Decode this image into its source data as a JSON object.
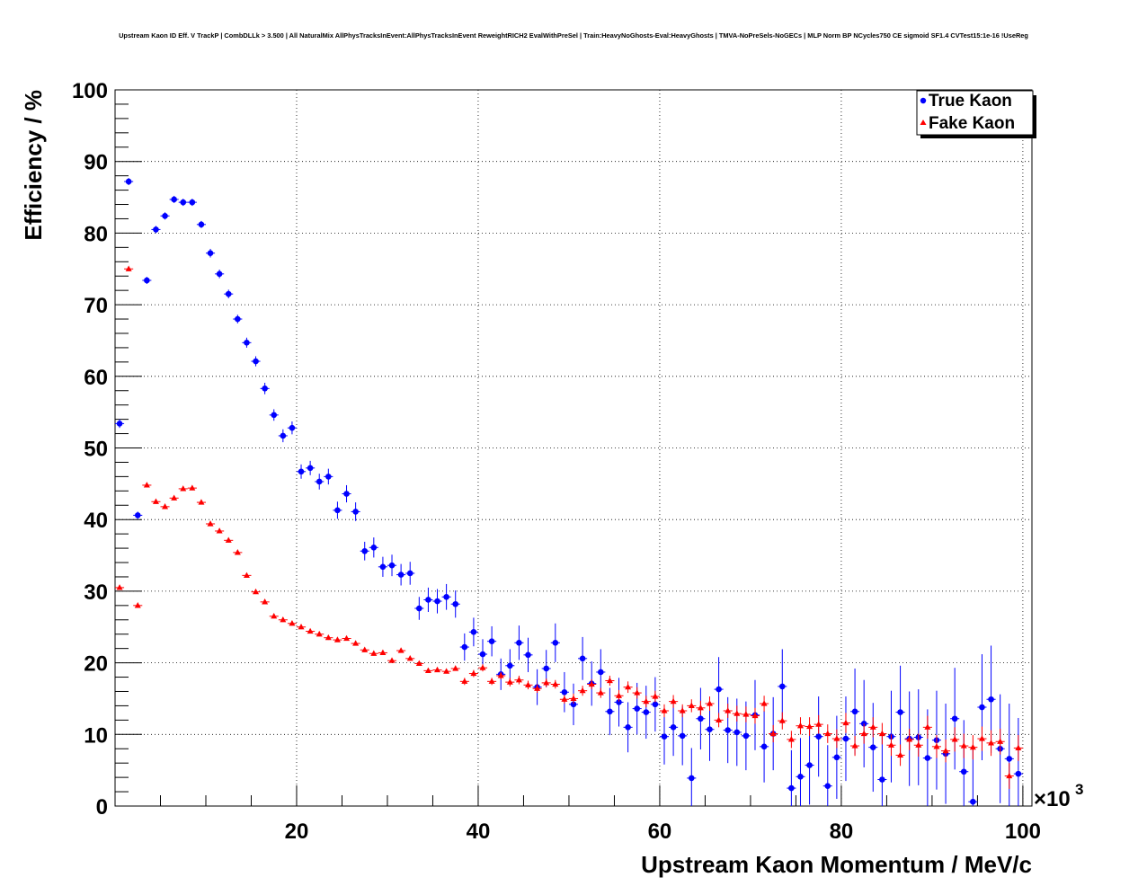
{
  "chart_data": {
    "type": "scatter",
    "title": "Upstream Kaon ID Eff. V TrackP | CombDLLk > 3.500 | All NaturalMix AllPhysTracksInEvent:AllPhysTracksInEvent ReweightRICH2 EvalWithPreSel | Train:HeavyNoGhosts-Eval:HeavyGhosts | TMVA-NoPreSels-NoGECs | MLP Norm BP NCycles750 CE sigmoid SF1.4 CVTest15:1e-16 !UseReg",
    "xlabel": "Upstream Kaon Momentum / MeV/c",
    "ylabel": "Efficiency / %",
    "x_exponent_label": "×10",
    "x_exponent_power": "3",
    "xlim": [
      0,
      101
    ],
    "ylim": [
      0,
      100
    ],
    "x_ticks": [
      "20",
      "40",
      "60",
      "80",
      "100"
    ],
    "y_ticks": [
      "0",
      "10",
      "20",
      "30",
      "40",
      "50",
      "60",
      "70",
      "80",
      "90",
      "100"
    ],
    "grid": true,
    "legend_position": "top-right",
    "series": [
      {
        "name": "True Kaon",
        "color": "#0000ff",
        "marker": "circle",
        "points": [
          [
            0.5,
            53.4,
            0.6
          ],
          [
            1.5,
            87.2,
            0.5
          ],
          [
            2.5,
            40.6,
            0.5
          ],
          [
            3.5,
            73.4,
            0.5
          ],
          [
            4.5,
            80.5,
            0.5
          ],
          [
            5.5,
            82.4,
            0.5
          ],
          [
            6.5,
            84.7,
            0.5
          ],
          [
            7.5,
            84.3,
            0.5
          ],
          [
            8.5,
            84.3,
            0.5
          ],
          [
            9.5,
            81.2,
            0.5
          ],
          [
            10.5,
            77.2,
            0.6
          ],
          [
            11.5,
            74.3,
            0.6
          ],
          [
            12.5,
            71.5,
            0.6
          ],
          [
            13.5,
            68.0,
            0.6
          ],
          [
            14.5,
            64.7,
            0.7
          ],
          [
            15.5,
            62.1,
            0.7
          ],
          [
            16.5,
            58.3,
            0.8
          ],
          [
            17.5,
            54.6,
            0.8
          ],
          [
            18.5,
            51.7,
            0.9
          ],
          [
            19.5,
            52.8,
            0.9
          ],
          [
            20.5,
            46.7,
            1.0
          ],
          [
            21.5,
            47.2,
            1.0
          ],
          [
            22.5,
            45.3,
            1.1
          ],
          [
            23.5,
            46.0,
            1.1
          ],
          [
            24.5,
            41.3,
            1.2
          ],
          [
            25.5,
            43.6,
            1.2
          ],
          [
            26.5,
            41.1,
            1.3
          ],
          [
            27.5,
            35.6,
            1.3
          ],
          [
            28.5,
            36.1,
            1.4
          ],
          [
            29.5,
            33.4,
            1.4
          ],
          [
            30.5,
            33.6,
            1.5
          ],
          [
            31.5,
            32.3,
            1.5
          ],
          [
            32.5,
            32.5,
            1.6
          ],
          [
            33.5,
            27.6,
            1.6
          ],
          [
            34.5,
            28.8,
            1.7
          ],
          [
            35.5,
            28.6,
            1.7
          ],
          [
            36.5,
            29.2,
            1.8
          ],
          [
            37.5,
            28.2,
            1.9
          ],
          [
            38.5,
            22.2,
            1.9
          ],
          [
            39.5,
            24.3,
            2.0
          ],
          [
            40.5,
            21.2,
            2.1
          ],
          [
            41.5,
            23.0,
            2.1
          ],
          [
            42.5,
            18.4,
            2.2
          ],
          [
            43.5,
            19.6,
            2.3
          ],
          [
            44.5,
            22.8,
            2.4
          ],
          [
            45.5,
            21.1,
            2.4
          ],
          [
            46.5,
            16.6,
            2.5
          ],
          [
            47.5,
            19.2,
            2.6
          ],
          [
            48.5,
            22.8,
            2.7
          ],
          [
            49.5,
            15.9,
            2.8
          ],
          [
            50.5,
            14.2,
            2.9
          ],
          [
            51.5,
            20.6,
            3.0
          ],
          [
            52.5,
            17.1,
            3.1
          ],
          [
            53.5,
            18.7,
            3.2
          ],
          [
            54.5,
            13.2,
            3.3
          ],
          [
            55.5,
            14.5,
            3.4
          ],
          [
            56.5,
            11.0,
            3.5
          ],
          [
            57.5,
            13.6,
            3.6
          ],
          [
            58.5,
            13.1,
            3.7
          ],
          [
            59.5,
            14.2,
            3.8
          ],
          [
            60.5,
            9.7,
            3.9
          ],
          [
            61.5,
            11.0,
            4.0
          ],
          [
            62.5,
            9.8,
            4.1
          ],
          [
            63.5,
            3.9,
            4.2
          ],
          [
            64.5,
            12.2,
            4.3
          ],
          [
            65.5,
            10.7,
            4.4
          ],
          [
            66.5,
            16.3,
            4.5
          ],
          [
            67.5,
            10.6,
            4.6
          ],
          [
            68.5,
            10.3,
            4.7
          ],
          [
            69.5,
            9.8,
            4.8
          ],
          [
            70.5,
            12.7,
            4.9
          ],
          [
            71.5,
            8.3,
            5.0
          ],
          [
            72.5,
            10.1,
            5.1
          ],
          [
            73.5,
            16.7,
            5.2
          ],
          [
            74.5,
            2.5,
            5.3
          ],
          [
            75.5,
            4.1,
            5.4
          ],
          [
            76.5,
            5.7,
            5.5
          ],
          [
            77.5,
            9.7,
            5.6
          ],
          [
            78.5,
            2.8,
            5.7
          ],
          [
            79.5,
            6.8,
            5.8
          ],
          [
            80.5,
            9.4,
            5.9
          ],
          [
            81.5,
            13.2,
            6.0
          ],
          [
            82.5,
            11.5,
            6.1
          ],
          [
            83.5,
            8.2,
            6.2
          ],
          [
            84.5,
            3.7,
            6.3
          ],
          [
            85.5,
            9.7,
            6.4
          ],
          [
            86.5,
            13.1,
            6.5
          ],
          [
            87.5,
            9.4,
            6.6
          ],
          [
            88.5,
            9.6,
            6.7
          ],
          [
            89.5,
            6.7,
            6.8
          ],
          [
            90.5,
            9.2,
            6.9
          ],
          [
            91.5,
            7.3,
            7.0
          ],
          [
            92.5,
            12.2,
            7.1
          ],
          [
            93.5,
            4.8,
            7.2
          ],
          [
            94.5,
            0.6,
            7.3
          ],
          [
            95.5,
            13.8,
            7.4
          ],
          [
            96.5,
            14.9,
            7.5
          ],
          [
            97.5,
            8.0,
            7.6
          ],
          [
            98.5,
            6.6,
            7.7
          ],
          [
            99.5,
            4.5,
            7.8
          ]
        ]
      },
      {
        "name": "Fake Kaon",
        "color": "#ff0000",
        "marker": "triangle",
        "points": [
          [
            0.5,
            30.5,
            0.3
          ],
          [
            1.5,
            75.0,
            0.3
          ],
          [
            2.5,
            28.0,
            0.3
          ],
          [
            3.5,
            44.8,
            0.3
          ],
          [
            4.5,
            42.5,
            0.3
          ],
          [
            5.5,
            41.8,
            0.3
          ],
          [
            6.5,
            43.0,
            0.3
          ],
          [
            7.5,
            44.3,
            0.3
          ],
          [
            8.5,
            44.4,
            0.3
          ],
          [
            9.5,
            42.4,
            0.3
          ],
          [
            10.5,
            39.4,
            0.3
          ],
          [
            11.5,
            38.4,
            0.3
          ],
          [
            12.5,
            37.1,
            0.3
          ],
          [
            13.5,
            35.4,
            0.3
          ],
          [
            14.5,
            32.2,
            0.3
          ],
          [
            15.5,
            29.9,
            0.3
          ],
          [
            16.5,
            28.5,
            0.3
          ],
          [
            17.5,
            26.5,
            0.3
          ],
          [
            18.5,
            26.0,
            0.3
          ],
          [
            19.5,
            25.5,
            0.3
          ],
          [
            20.5,
            25.0,
            0.3
          ],
          [
            21.5,
            24.4,
            0.3
          ],
          [
            22.5,
            24.0,
            0.3
          ],
          [
            23.5,
            23.5,
            0.3
          ],
          [
            24.5,
            23.2,
            0.3
          ],
          [
            25.5,
            23.4,
            0.3
          ],
          [
            26.5,
            22.7,
            0.3
          ],
          [
            27.5,
            21.8,
            0.3
          ],
          [
            28.5,
            21.3,
            0.3
          ],
          [
            29.5,
            21.4,
            0.3
          ],
          [
            30.5,
            20.3,
            0.3
          ],
          [
            31.5,
            21.7,
            0.3
          ],
          [
            32.5,
            20.6,
            0.3
          ],
          [
            33.5,
            19.9,
            0.3
          ],
          [
            34.5,
            18.9,
            0.3
          ],
          [
            35.5,
            19.0,
            0.3
          ],
          [
            36.5,
            18.8,
            0.3
          ],
          [
            37.5,
            19.2,
            0.3
          ],
          [
            38.5,
            17.4,
            0.5
          ],
          [
            39.5,
            18.5,
            0.5
          ],
          [
            40.5,
            19.3,
            0.5
          ],
          [
            41.5,
            17.4,
            0.5
          ],
          [
            42.5,
            18.2,
            0.5
          ],
          [
            43.5,
            17.3,
            0.6
          ],
          [
            44.5,
            17.6,
            0.6
          ],
          [
            45.5,
            16.9,
            0.6
          ],
          [
            46.5,
            16.4,
            0.6
          ],
          [
            47.5,
            17.2,
            0.6
          ],
          [
            48.5,
            17.0,
            0.6
          ],
          [
            49.5,
            14.9,
            0.6
          ],
          [
            50.5,
            15.0,
            0.7
          ],
          [
            51.5,
            16.1,
            0.7
          ],
          [
            52.5,
            17.0,
            0.7
          ],
          [
            53.5,
            15.8,
            0.7
          ],
          [
            54.5,
            17.5,
            0.7
          ],
          [
            55.5,
            15.4,
            0.8
          ],
          [
            56.5,
            16.6,
            0.8
          ],
          [
            57.5,
            15.8,
            0.8
          ],
          [
            58.5,
            14.6,
            0.8
          ],
          [
            59.5,
            15.3,
            0.8
          ],
          [
            60.5,
            13.3,
            0.9
          ],
          [
            61.5,
            14.6,
            0.9
          ],
          [
            62.5,
            13.3,
            0.9
          ],
          [
            63.5,
            14.0,
            0.9
          ],
          [
            64.5,
            13.7,
            1.0
          ],
          [
            65.5,
            14.3,
            1.0
          ],
          [
            66.5,
            12.0,
            1.0
          ],
          [
            67.5,
            13.3,
            1.0
          ],
          [
            68.5,
            12.9,
            1.1
          ],
          [
            69.5,
            12.8,
            1.1
          ],
          [
            70.5,
            12.6,
            1.1
          ],
          [
            71.5,
            14.3,
            1.1
          ],
          [
            72.5,
            10.1,
            1.2
          ],
          [
            73.5,
            11.9,
            1.2
          ],
          [
            74.5,
            9.3,
            1.2
          ],
          [
            75.5,
            11.2,
            1.2
          ],
          [
            76.5,
            11.1,
            1.3
          ],
          [
            77.5,
            11.4,
            1.3
          ],
          [
            78.5,
            10.1,
            1.3
          ],
          [
            79.5,
            9.4,
            1.3
          ],
          [
            80.5,
            11.6,
            1.4
          ],
          [
            81.5,
            8.4,
            1.4
          ],
          [
            82.5,
            10.1,
            1.4
          ],
          [
            83.5,
            11.0,
            1.4
          ],
          [
            84.5,
            10.1,
            1.5
          ],
          [
            85.5,
            8.5,
            1.5
          ],
          [
            86.5,
            7.1,
            1.5
          ],
          [
            87.5,
            9.3,
            1.5
          ],
          [
            88.5,
            8.5,
            1.6
          ],
          [
            89.5,
            11.0,
            1.6
          ],
          [
            90.5,
            8.3,
            1.6
          ],
          [
            91.5,
            7.7,
            1.6
          ],
          [
            92.5,
            9.3,
            1.7
          ],
          [
            93.5,
            8.4,
            1.7
          ],
          [
            94.5,
            8.2,
            1.7
          ],
          [
            95.5,
            9.4,
            1.7
          ],
          [
            96.5,
            8.8,
            1.8
          ],
          [
            97.5,
            9.0,
            1.8
          ],
          [
            98.5,
            4.2,
            1.8
          ],
          [
            99.5,
            8.1,
            1.8
          ]
        ]
      }
    ]
  }
}
